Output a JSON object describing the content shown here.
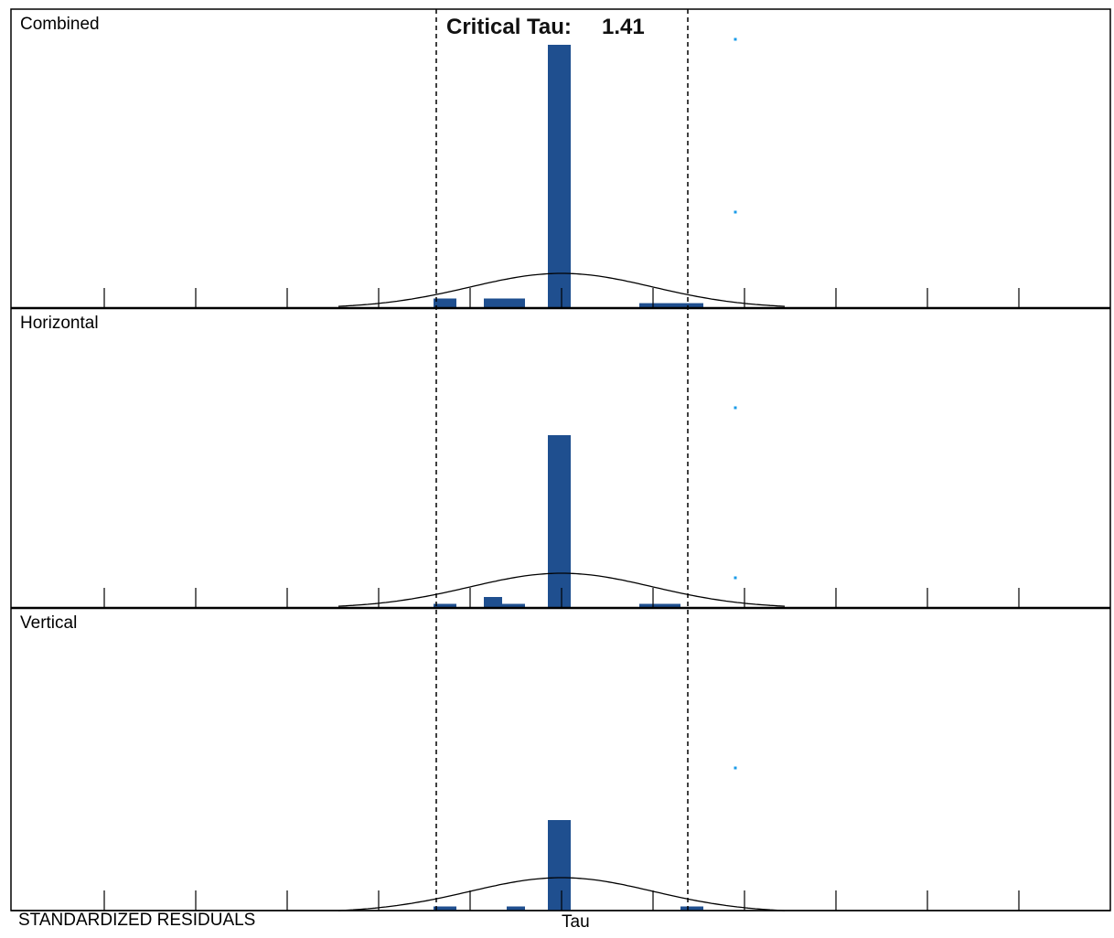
{
  "header": {
    "critical_tau_label": "Critical Tau:",
    "critical_tau_value": "1.41"
  },
  "footer": {
    "left_label": "STANDARDIZED RESIDUALS",
    "axis_label": "Tau"
  },
  "colors": {
    "bar": "#1f4f8f",
    "marker": "#1a9be8",
    "curve": "#000000",
    "frame": "#000000"
  },
  "chart_data": [
    {
      "type": "bar",
      "panel": "Combined",
      "title": "Combined",
      "xlim": [
        -5,
        5
      ],
      "critical_tau": [
        -1.41,
        1.41
      ],
      "normal_curve": true,
      "bins": [
        {
          "x0": -1.4,
          "x1": -1.15,
          "v": 0.035
        },
        {
          "x0": -0.85,
          "x1": -0.4,
          "v": 0.035
        },
        {
          "x0": -0.15,
          "x1": 0.1,
          "v": 0.96
        },
        {
          "x0": 0.85,
          "x1": 1.55,
          "v": 0.018
        }
      ],
      "markers": [
        {
          "x": 1.9,
          "y": 0.98
        },
        {
          "x": 1.9,
          "y": 0.35
        }
      ]
    },
    {
      "type": "bar",
      "panel": "Horizontal",
      "title": "Horizontal",
      "xlim": [
        -5,
        5
      ],
      "critical_tau": [
        -1.41,
        1.41
      ],
      "normal_curve": true,
      "bins": [
        {
          "x0": -1.4,
          "x1": -1.15,
          "v": 0.015
        },
        {
          "x0": -0.85,
          "x1": -0.65,
          "v": 0.04
        },
        {
          "x0": -0.65,
          "x1": -0.4,
          "v": 0.015
        },
        {
          "x0": -0.15,
          "x1": 0.1,
          "v": 0.63
        },
        {
          "x0": 0.85,
          "x1": 1.3,
          "v": 0.015
        }
      ],
      "markers": [
        {
          "x": 1.9,
          "y": 0.73
        },
        {
          "x": 1.9,
          "y": 0.11
        }
      ]
    },
    {
      "type": "bar",
      "panel": "Vertical",
      "title": "Vertical",
      "xlim": [
        -5,
        5
      ],
      "critical_tau": [
        -1.41,
        1.41
      ],
      "normal_curve": true,
      "bins": [
        {
          "x0": -1.4,
          "x1": -1.15,
          "v": 0.015
        },
        {
          "x0": -0.6,
          "x1": -0.4,
          "v": 0.015
        },
        {
          "x0": -0.15,
          "x1": 0.1,
          "v": 0.33
        },
        {
          "x0": 1.3,
          "x1": 1.55,
          "v": 0.015
        }
      ],
      "markers": [
        {
          "x": 1.9,
          "y": 0.52
        }
      ]
    }
  ]
}
